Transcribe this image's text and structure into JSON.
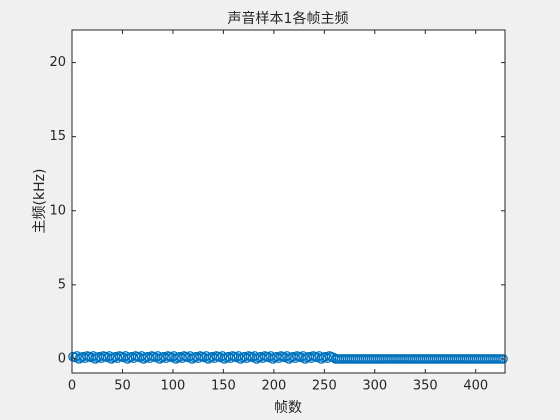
{
  "chart_data": {
    "type": "scatter",
    "title": "声音样本1各帧主频",
    "x_label": "帧数",
    "y_label": "主频(kHz)",
    "color": "#0072BD",
    "xlim": [
      0,
      429
    ],
    "ylim": [
      -0.95,
      22.2
    ],
    "xticks": [
      0,
      50,
      100,
      150,
      200,
      250,
      300,
      350,
      400
    ],
    "yticks": [
      0,
      5,
      10,
      15,
      20
    ],
    "x": [
      1,
      3,
      5,
      7,
      9,
      11,
      13,
      15,
      17,
      19,
      21,
      23,
      25,
      27,
      29,
      31,
      33,
      35,
      37,
      39,
      41,
      43,
      45,
      47,
      49,
      51,
      53,
      55,
      57,
      59,
      61,
      63,
      65,
      67,
      69,
      71,
      73,
      75,
      77,
      79,
      81,
      83,
      85,
      87,
      89,
      91,
      93,
      95,
      97,
      99,
      101,
      103,
      105,
      107,
      109,
      111,
      113,
      115,
      117,
      119,
      121,
      123,
      125,
      127,
      129,
      131,
      133,
      135,
      137,
      139,
      141,
      143,
      145,
      147,
      149,
      151,
      153,
      155,
      157,
      159,
      161,
      163,
      165,
      167,
      169,
      171,
      173,
      175,
      177,
      179,
      181,
      183,
      185,
      187,
      189,
      191,
      193,
      195,
      197,
      199,
      201,
      203,
      205,
      207,
      209,
      211,
      213,
      215,
      217,
      219,
      221,
      223,
      225,
      227,
      229,
      231,
      233,
      235,
      237,
      239,
      241,
      243,
      245,
      247,
      249,
      251,
      253,
      255,
      257,
      259,
      261,
      263,
      265,
      267,
      269,
      271,
      273,
      275,
      277,
      279,
      281,
      283,
      285,
      287,
      289,
      291,
      293,
      295,
      297,
      299,
      301,
      303,
      305,
      307,
      309,
      311,
      313,
      315,
      317,
      319,
      321,
      323,
      325,
      327,
      329,
      331,
      333,
      335,
      337,
      339,
      341,
      343,
      345,
      347,
      349,
      351,
      353,
      355,
      357,
      359,
      361,
      363,
      365,
      367,
      369,
      371,
      373,
      375,
      377,
      379,
      381,
      383,
      385,
      387,
      389,
      391,
      393,
      395,
      397,
      399,
      401,
      403,
      405,
      407,
      409,
      411,
      413,
      415,
      417,
      419,
      421,
      423,
      425,
      427
    ],
    "values": [
      0.15,
      0.1,
      0.2,
      0,
      0.1,
      0.15,
      0.05,
      0.2,
      0.15,
      0.1,
      0.2,
      0,
      0.1,
      0.15,
      0.05,
      0.2,
      0.15,
      0.1,
      0.2,
      0,
      0.1,
      0.15,
      0.05,
      0.2,
      0.15,
      0.1,
      0.2,
      0,
      0.1,
      0.15,
      0.05,
      0.2,
      0.15,
      0.1,
      0.2,
      0,
      0.1,
      0.15,
      0.05,
      0.2,
      0.15,
      0.1,
      0.2,
      0,
      0.1,
      0.15,
      0.05,
      0.2,
      0.15,
      0.1,
      0.2,
      0,
      0.1,
      0.15,
      0.05,
      0.2,
      0.15,
      0.1,
      0.2,
      0,
      0.1,
      0.15,
      0.05,
      0.2,
      0.15,
      0.1,
      0.2,
      0,
      0.1,
      0.15,
      0.05,
      0.2,
      0.15,
      0.1,
      0.2,
      0,
      0.1,
      0.15,
      0.05,
      0.2,
      0.15,
      0.1,
      0.2,
      0,
      0.1,
      0.15,
      0.05,
      0.2,
      0.15,
      0.1,
      0.2,
      0,
      0.1,
      0.15,
      0.05,
      0.2,
      0.15,
      0.1,
      0.2,
      0,
      0.1,
      0.15,
      0.05,
      0.2,
      0.15,
      0.1,
      0.2,
      0,
      0.1,
      0.15,
      0.05,
      0.2,
      0.15,
      0.1,
      0.2,
      0,
      0.1,
      0.15,
      0.05,
      0.2,
      0.15,
      0.1,
      0.2,
      0,
      0.1,
      0.15,
      0.05,
      0.2,
      0.15,
      0.1,
      0,
      0,
      0,
      0,
      0,
      0,
      0,
      0,
      0,
      0,
      0,
      0,
      0,
      0,
      0,
      0,
      0,
      0,
      0,
      0,
      0,
      0,
      0,
      0,
      0,
      0,
      0,
      0,
      0,
      0,
      0,
      0,
      0,
      0,
      0,
      0,
      0,
      0,
      0,
      0,
      0,
      0,
      0,
      0,
      0,
      0,
      0,
      0,
      0,
      0,
      0,
      0,
      0,
      0,
      0,
      0,
      0,
      0,
      0,
      0,
      0,
      0,
      0,
      0,
      0,
      0,
      0,
      0,
      0,
      0,
      0,
      0,
      0,
      0,
      0,
      0,
      0,
      0,
      0,
      0,
      0,
      0,
      0,
      0
    ]
  }
}
